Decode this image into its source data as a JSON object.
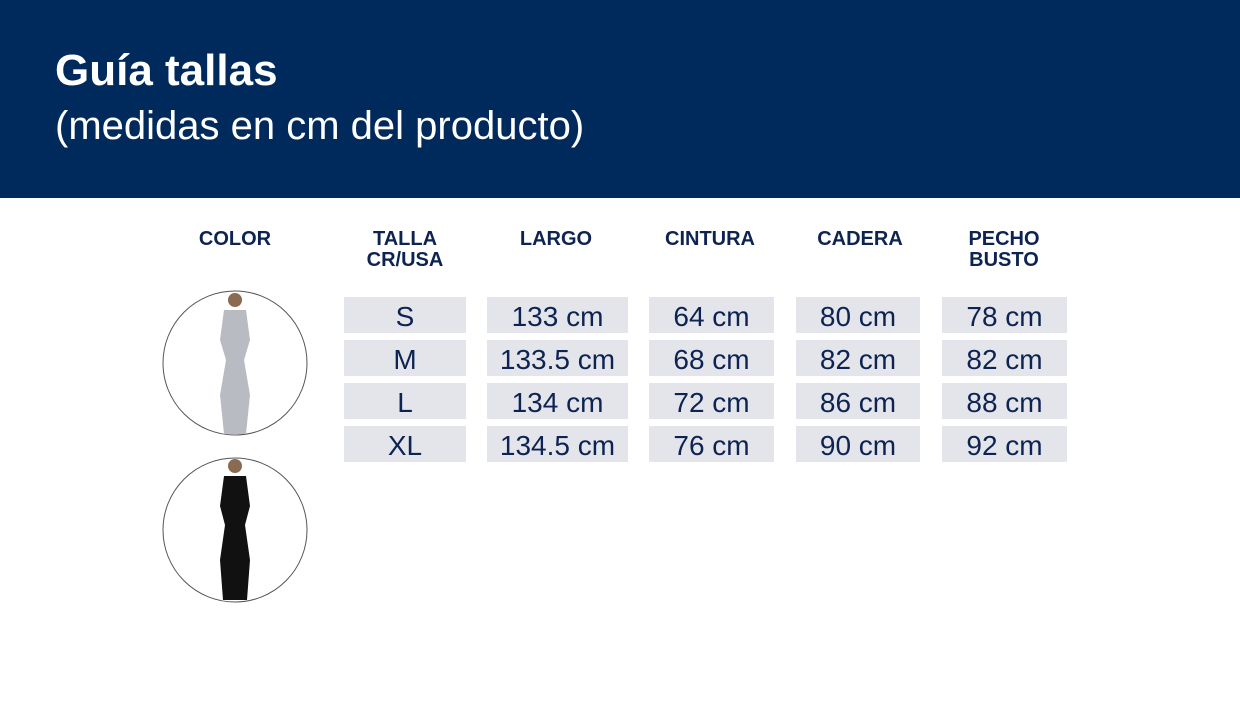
{
  "header": {
    "title": "Guía tallas",
    "subtitle": "(medidas en cm del producto)"
  },
  "table": {
    "headers": [
      [
        "COLOR"
      ],
      [
        "TALLA",
        "CR/USA"
      ],
      [
        "LARGO"
      ],
      [
        "CINTURA"
      ],
      [
        "CADERA"
      ],
      [
        "PECHO",
        "BUSTO"
      ]
    ],
    "rows": [
      [
        "S",
        "133 cm",
        "64 cm",
        "80 cm",
        "78 cm"
      ],
      [
        "M",
        "133.5 cm",
        "68 cm",
        "82 cm",
        "82 cm"
      ],
      [
        "L",
        "134 cm",
        "72 cm",
        "86 cm",
        "88 cm"
      ],
      [
        "XL",
        "134.5 cm",
        "76 cm",
        "90 cm",
        "92 cm"
      ]
    ]
  }
}
